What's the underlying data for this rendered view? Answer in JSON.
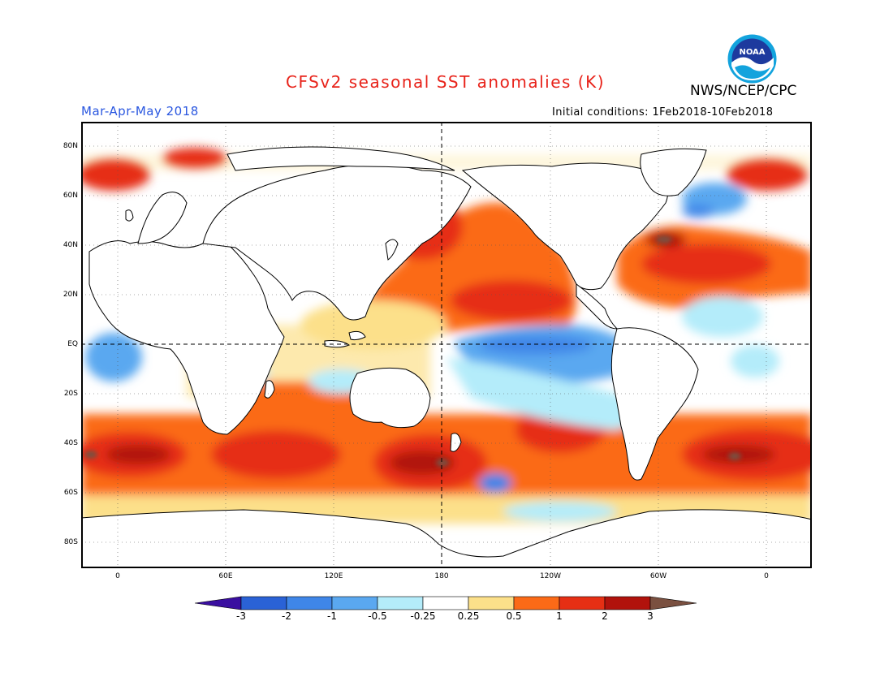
{
  "title": "CFSv2 seasonal SST anomalies (K)",
  "agency": "NWS/NCEP/CPC",
  "logo": {
    "icon": "noaa-logo-icon",
    "text": "NOAA"
  },
  "season": "Mar-Apr-May 2018",
  "initial_conditions": "Initial conditions: 1Feb2018-10Feb2018",
  "axes": {
    "y_ticks": [
      "80N",
      "60N",
      "40N",
      "20N",
      "EQ",
      "20S",
      "40S",
      "60S",
      "80S"
    ],
    "x_ticks": [
      "0",
      "60E",
      "120E",
      "180",
      "120W",
      "60W",
      "0"
    ]
  },
  "colorbar": {
    "labels": [
      "-3",
      "-2",
      "-1",
      "-0.5",
      "-0.25",
      "0.25",
      "0.5",
      "1",
      "2",
      "3"
    ],
    "colors": [
      "#3a0fa0",
      "#2a62d6",
      "#3f86e8",
      "#5aa8f0",
      "#b4ecfa",
      "#ffffff",
      "#fce08a",
      "#fb6a17",
      "#e62f14",
      "#b1120c",
      "#7a5040"
    ]
  }
}
